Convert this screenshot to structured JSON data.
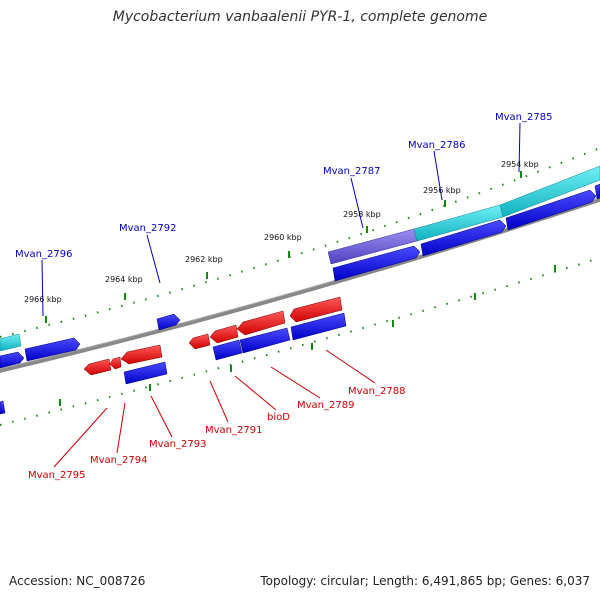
{
  "title": "Mycobacterium vanbaalenii PYR-1, complete genome",
  "accession": "Accession: NC_008726",
  "summary": "Topology: circular; Length: 6,491,865 bp; Genes: 6,037",
  "ticks": [
    "2954 kbp",
    "2956 kbp",
    "2958 kbp",
    "2960 kbp",
    "2962 kbp",
    "2964 kbp",
    "2966 kbp"
  ],
  "genes_top": [
    "Mvan_2785",
    "Mvan_2786",
    "Mvan_2787",
    "Mvan_2792",
    "Mvan_2796"
  ],
  "genes_bottom": [
    "Mvan_2788",
    "Mvan_2789",
    "bioD",
    "Mvan_2791",
    "Mvan_2793",
    "Mvan_2794",
    "Mvan_2795"
  ],
  "colors": {
    "forward_gene": "#1010e0",
    "reverse_gene": "#ee1010",
    "highlight_cyan": "#20c8d0",
    "highlight_purple": "#7060d0",
    "backbone": "#888888",
    "tick": "#118811",
    "label_blue": "#0000bb",
    "label_red": "#cc0000"
  }
}
